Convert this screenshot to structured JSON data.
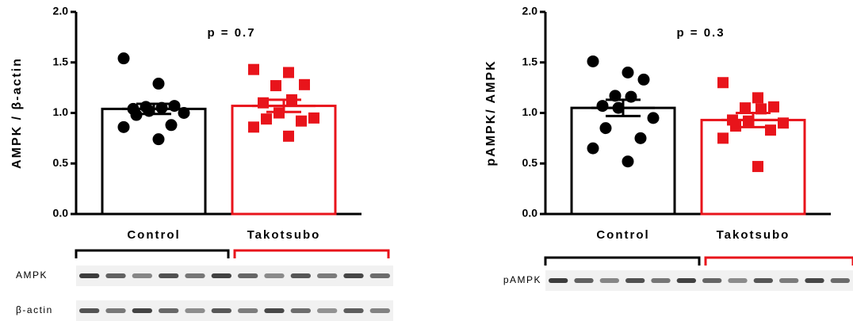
{
  "chart_data": [
    {
      "type": "bar",
      "ylabel": "AMPK / β-actin",
      "annotation": "p = 0.7",
      "categories": [
        "Control",
        "Takotsubo"
      ],
      "colors": [
        "#000000",
        "#e8141b"
      ],
      "markers": [
        "circle",
        "square"
      ],
      "values": [
        1.04,
        1.07
      ],
      "errors": [
        0.05,
        0.06
      ],
      "points": [
        [
          1.54,
          1.29,
          1.07,
          1.06,
          1.05,
          1.04,
          1.02,
          1.0,
          0.98,
          0.88,
          0.86,
          0.74
        ],
        [
          1.43,
          1.4,
          1.28,
          1.27,
          1.13,
          1.1,
          1.0,
          0.95,
          0.94,
          0.92,
          0.86,
          0.77
        ]
      ],
      "ylim": [
        0,
        2
      ],
      "yticks": [
        {
          "value": 0,
          "label": "0.0"
        },
        {
          "value": 0.5,
          "label": "0.5"
        },
        {
          "value": 1,
          "label": "1.0"
        },
        {
          "value": 1.5,
          "label": "1.5"
        },
        {
          "value": 2,
          "label": "2.0"
        }
      ],
      "blot_labels": [
        "AMPK",
        "β-actin"
      ]
    },
    {
      "type": "bar",
      "ylabel": "pAMPK/ AMPK",
      "annotation": "p = 0.3",
      "categories": [
        "Control",
        "Takotsubo"
      ],
      "colors": [
        "#000000",
        "#e8141b"
      ],
      "markers": [
        "circle",
        "square"
      ],
      "values": [
        1.05,
        0.93
      ],
      "errors": [
        0.08,
        0.07
      ],
      "points": [
        [
          1.51,
          1.4,
          1.33,
          1.17,
          1.16,
          1.07,
          1.05,
          0.95,
          0.85,
          0.75,
          0.65,
          0.52
        ],
        [
          1.3,
          1.15,
          1.06,
          1.05,
          1.04,
          0.93,
          0.92,
          0.9,
          0.87,
          0.83,
          0.75,
          0.47
        ]
      ],
      "ylim": [
        0,
        2
      ],
      "yticks": [
        {
          "value": 0,
          "label": "0.0"
        },
        {
          "value": 0.5,
          "label": "0.5"
        },
        {
          "value": 1,
          "label": "1.0"
        },
        {
          "value": 1.5,
          "label": "1.5"
        },
        {
          "value": 2,
          "label": "2.0"
        }
      ],
      "blot_labels": [
        "pAMPK"
      ]
    }
  ]
}
